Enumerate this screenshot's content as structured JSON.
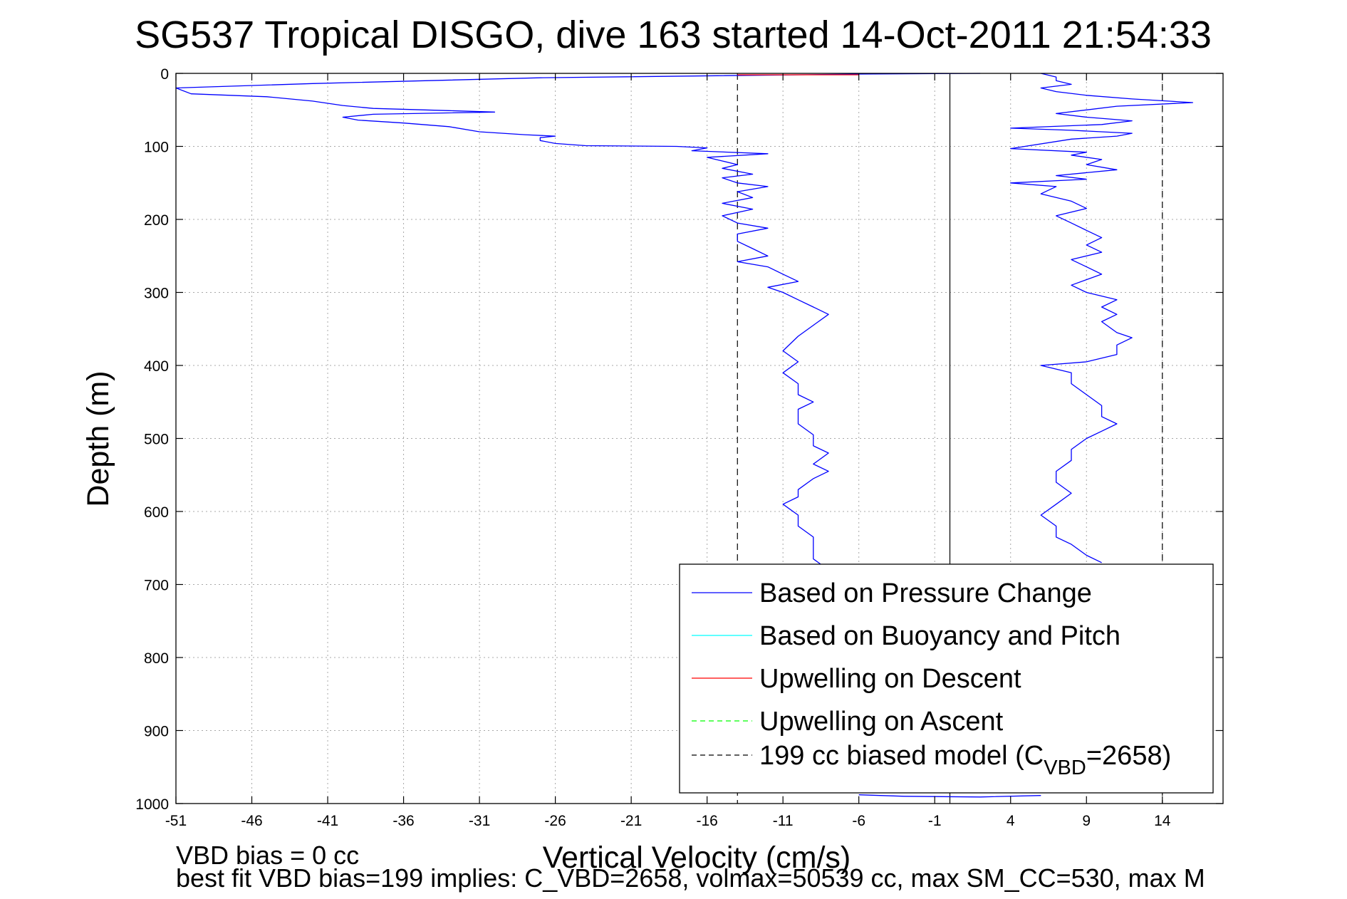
{
  "chart_data": {
    "type": "line",
    "title": "SG537 Tropical DISGO, dive 163 started 14-Oct-2011 21:54:33",
    "xlabel": "Vertical Velocity (cm/s)",
    "ylabel": "Depth (m)",
    "xlim": [
      -51,
      18
    ],
    "ylim": [
      0,
      1000
    ],
    "y_reversed": true,
    "x_ticks": [
      -51,
      -46,
      -41,
      -36,
      -31,
      -26,
      -21,
      -16,
      -11,
      -6,
      -1,
      4,
      9,
      14
    ],
    "y_ticks": [
      0,
      100,
      200,
      300,
      400,
      500,
      600,
      700,
      800,
      900,
      1000
    ],
    "grid": true,
    "legend_position": "bottom-right",
    "legend": [
      {
        "label": "Based on Pressure Change",
        "color": "#0000ff",
        "style": "solid"
      },
      {
        "label": "Based on Buoyancy and Pitch",
        "color": "#00ffff",
        "style": "solid"
      },
      {
        "label": "Upwelling on Descent",
        "color": "#ff0000",
        "style": "solid"
      },
      {
        "label": "Upwelling on Ascent",
        "color": "#00ff00",
        "style": "dashed"
      },
      {
        "label_main": "199 cc biased model (C",
        "label_sub": "VBD",
        "label_end": "=2658)",
        "color": "#000000",
        "style": "dashed"
      }
    ],
    "series": [
      {
        "name": "Based on Pressure Change",
        "segment": "descent",
        "color": "#0000ff",
        "points": [
          [
            2,
            0
          ],
          [
            -6,
            1
          ],
          [
            -27,
            6
          ],
          [
            -42,
            14
          ],
          [
            -51,
            20
          ],
          [
            -50,
            28
          ],
          [
            -45,
            32
          ],
          [
            -42,
            38
          ],
          [
            -40,
            44
          ],
          [
            -38,
            48
          ],
          [
            -33,
            51
          ],
          [
            -30,
            53
          ],
          [
            -38,
            56
          ],
          [
            -40,
            60
          ],
          [
            -39,
            64
          ],
          [
            -36,
            68
          ],
          [
            -33,
            73
          ],
          [
            -31,
            80
          ],
          [
            -28,
            84
          ],
          [
            -26,
            86
          ],
          [
            -27,
            88
          ],
          [
            -27,
            92
          ],
          [
            -26,
            96
          ],
          [
            -24,
            99
          ],
          [
            -18,
            100
          ],
          [
            -16,
            102
          ],
          [
            -17,
            106
          ],
          [
            -12,
            110
          ],
          [
            -16,
            115
          ],
          [
            -15,
            120
          ],
          [
            -14,
            125
          ],
          [
            -15,
            130
          ],
          [
            -13,
            138
          ],
          [
            -15,
            143
          ],
          [
            -14,
            150
          ],
          [
            -12,
            155
          ],
          [
            -14,
            162
          ],
          [
            -13,
            170
          ],
          [
            -15,
            178
          ],
          [
            -13,
            186
          ],
          [
            -15,
            195
          ],
          [
            -14,
            205
          ],
          [
            -12,
            212
          ],
          [
            -14,
            220
          ],
          [
            -14,
            230
          ],
          [
            -13,
            240
          ],
          [
            -12,
            250
          ],
          [
            -14,
            258
          ],
          [
            -12,
            265
          ],
          [
            -11,
            275
          ],
          [
            -10,
            285
          ],
          [
            -12,
            293
          ],
          [
            -11,
            300
          ],
          [
            -10,
            310
          ],
          [
            -9,
            320
          ],
          [
            -8,
            330
          ],
          [
            -9,
            345
          ],
          [
            -10,
            360
          ],
          [
            -11,
            380
          ],
          [
            -10,
            395
          ],
          [
            -11,
            410
          ],
          [
            -10,
            425
          ],
          [
            -10,
            440
          ],
          [
            -9,
            450
          ],
          [
            -10,
            460
          ],
          [
            -10,
            480
          ],
          [
            -9,
            495
          ],
          [
            -9,
            510
          ],
          [
            -8,
            520
          ],
          [
            -9,
            535
          ],
          [
            -8,
            545
          ],
          [
            -9,
            555
          ],
          [
            -10,
            570
          ],
          [
            -10,
            580
          ],
          [
            -11,
            590
          ],
          [
            -10,
            605
          ],
          [
            -10,
            620
          ],
          [
            -9,
            635
          ],
          [
            -9,
            650
          ],
          [
            -9,
            665
          ],
          [
            -8,
            680
          ]
        ]
      },
      {
        "name": "Based on Pressure Change",
        "segment": "ascent",
        "color": "#0000ff",
        "points": [
          [
            6,
            0
          ],
          [
            7,
            5
          ],
          [
            7,
            10
          ],
          [
            8,
            15
          ],
          [
            6,
            20
          ],
          [
            7,
            25
          ],
          [
            9,
            30
          ],
          [
            12,
            35
          ],
          [
            16,
            40
          ],
          [
            11,
            45
          ],
          [
            9,
            50
          ],
          [
            7,
            55
          ],
          [
            9,
            60
          ],
          [
            12,
            65
          ],
          [
            10,
            70
          ],
          [
            4,
            75
          ],
          [
            8,
            78
          ],
          [
            12,
            82
          ],
          [
            11,
            86
          ],
          [
            8,
            90
          ],
          [
            4,
            103
          ],
          [
            9,
            108
          ],
          [
            8,
            112
          ],
          [
            10,
            118
          ],
          [
            9,
            125
          ],
          [
            11,
            132
          ],
          [
            7,
            140
          ],
          [
            9,
            145
          ],
          [
            4,
            150
          ],
          [
            7,
            155
          ],
          [
            6,
            165
          ],
          [
            8,
            175
          ],
          [
            9,
            185
          ],
          [
            7,
            195
          ],
          [
            8,
            205
          ],
          [
            9,
            215
          ],
          [
            10,
            225
          ],
          [
            9,
            235
          ],
          [
            10,
            245
          ],
          [
            8,
            255
          ],
          [
            9,
            265
          ],
          [
            10,
            275
          ],
          [
            8,
            290
          ],
          [
            9,
            300
          ],
          [
            11,
            310
          ],
          [
            10,
            320
          ],
          [
            11,
            330
          ],
          [
            10,
            340
          ],
          [
            11,
            355
          ],
          [
            12,
            362
          ],
          [
            11,
            372
          ],
          [
            11,
            385
          ],
          [
            9,
            395
          ],
          [
            6,
            400
          ],
          [
            8,
            410
          ],
          [
            8,
            425
          ],
          [
            9,
            440
          ],
          [
            10,
            455
          ],
          [
            10,
            470
          ],
          [
            11,
            480
          ],
          [
            10,
            490
          ],
          [
            9,
            500
          ],
          [
            8,
            515
          ],
          [
            8,
            530
          ],
          [
            7,
            545
          ],
          [
            7,
            560
          ],
          [
            8,
            575
          ],
          [
            7,
            590
          ],
          [
            6,
            605
          ],
          [
            7,
            620
          ],
          [
            7,
            635
          ],
          [
            8,
            645
          ],
          [
            9,
            660
          ],
          [
            10,
            670
          ]
        ]
      },
      {
        "name": "Based on Pressure Change",
        "segment": "bottom",
        "color": "#0000ff",
        "points": [
          [
            -6,
            988
          ],
          [
            -3,
            990
          ],
          [
            2,
            991
          ],
          [
            6,
            989
          ]
        ]
      },
      {
        "name": "Upwelling on Descent",
        "color": "#ff0000",
        "points": [
          [
            -14,
            2
          ],
          [
            -6,
            2
          ]
        ]
      }
    ],
    "reference_lines": [
      {
        "name": "199 cc biased model",
        "x": -14,
        "color": "#000000",
        "style": "dashed"
      },
      {
        "name": "199 cc biased model",
        "x": 14,
        "color": "#000000",
        "style": "dashed"
      },
      {
        "name": "zero",
        "x": 0,
        "color": "#000000",
        "style": "solid"
      }
    ],
    "footer_lines": [
      "VBD bias = 0 cc",
      "best fit VBD bias=199 implies: C_VBD=2658, volmax=50539 cc, max SM_CC=530, max M"
    ]
  }
}
